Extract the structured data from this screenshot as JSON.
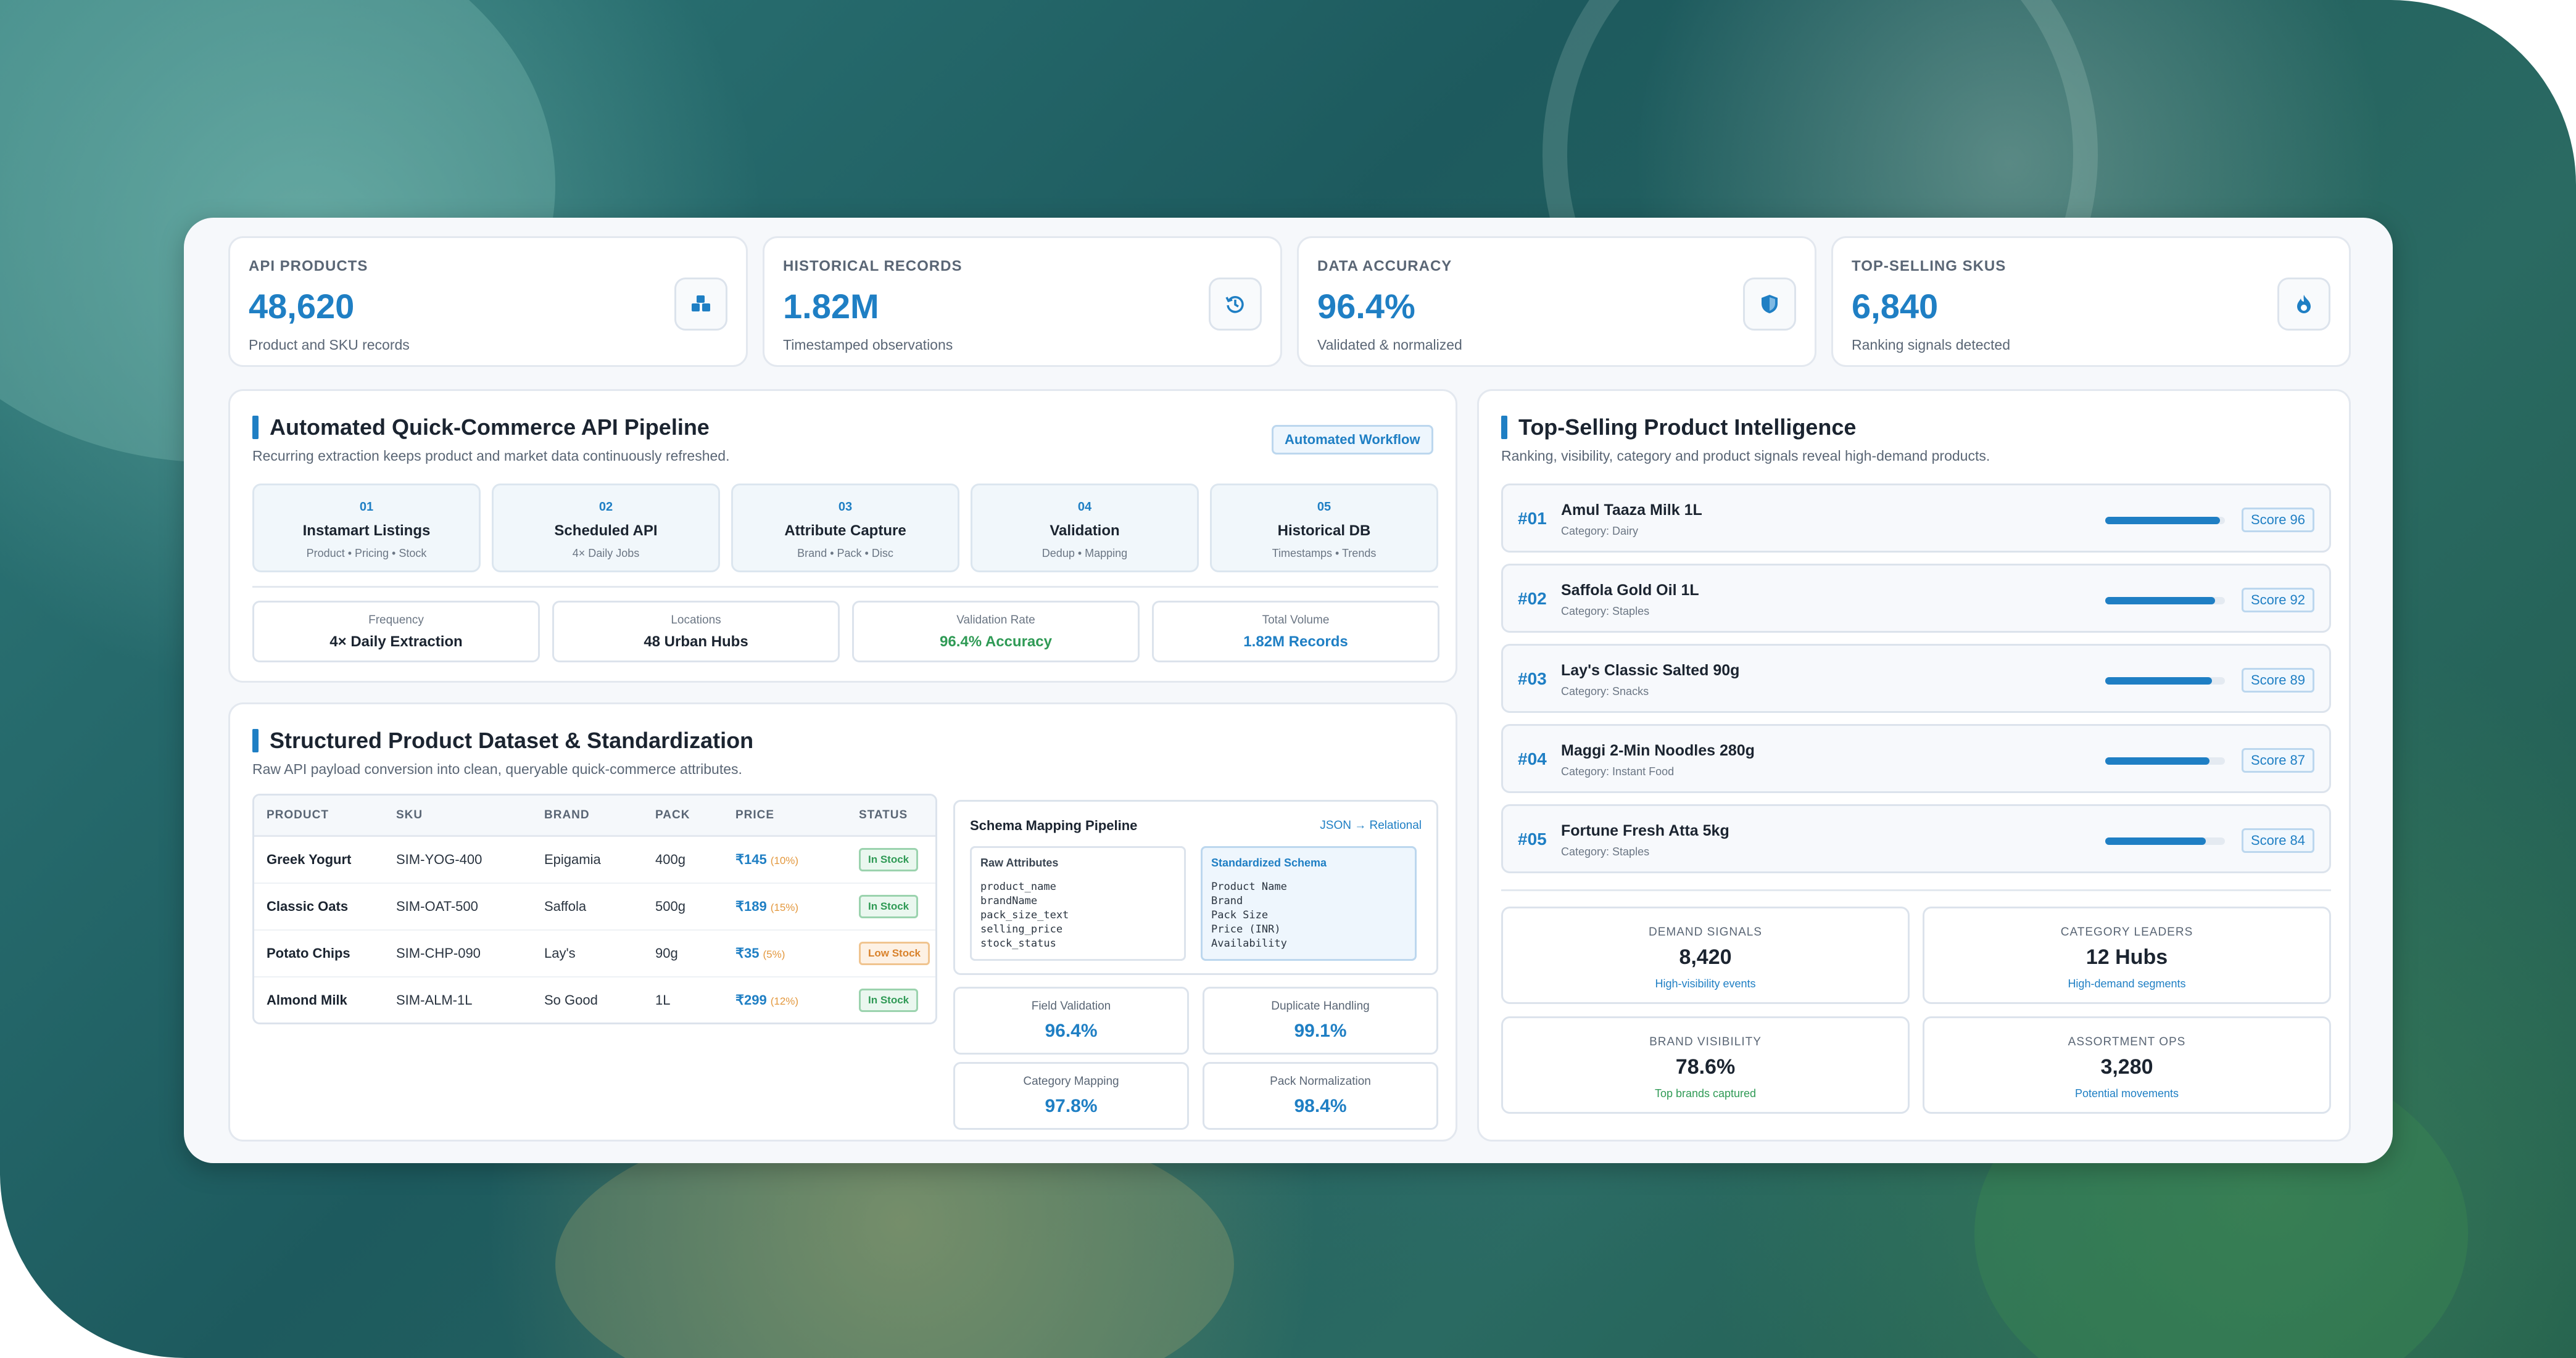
{
  "stats": [
    {
      "label": "API PRODUCTS",
      "value": "48,620",
      "sub": "Product and SKU records",
      "icon": "boxes-icon"
    },
    {
      "label": "HISTORICAL RECORDS",
      "value": "1.82M",
      "sub": "Timestamped observations",
      "icon": "history-icon"
    },
    {
      "label": "DATA ACCURACY",
      "value": "96.4%",
      "sub": "Validated & normalized",
      "icon": "shield-icon"
    },
    {
      "label": "TOP-SELLING SKUS",
      "value": "6,840",
      "sub": "Ranking signals detected",
      "icon": "fire-icon"
    }
  ],
  "pipeline": {
    "title": "Automated Quick-Commerce API Pipeline",
    "subtitle": "Recurring extraction keeps product and market data continuously refreshed.",
    "tag": "Automated Workflow",
    "steps": [
      {
        "num": "01",
        "title": "Instamart Listings",
        "sub": "Product • Pricing • Stock"
      },
      {
        "num": "02",
        "title": "Scheduled API",
        "sub": "4× Daily Jobs"
      },
      {
        "num": "03",
        "title": "Attribute Capture",
        "sub": "Brand • Pack • Disc"
      },
      {
        "num": "04",
        "title": "Validation",
        "sub": "Dedup • Mapping"
      },
      {
        "num": "05",
        "title": "Historical DB",
        "sub": "Timestamps • Trends"
      }
    ],
    "metrics": [
      {
        "label": "Frequency",
        "value": "4× Daily Extraction"
      },
      {
        "label": "Locations",
        "value": "48 Urban Hubs"
      },
      {
        "label": "Validation Rate",
        "value": "96.4% Accuracy"
      },
      {
        "label": "Total Volume",
        "value": "1.82M Records"
      }
    ],
    "colors": {
      "green": "#2f9a55",
      "blue": "#1f7fc4"
    }
  },
  "dataset": {
    "title": "Structured Product Dataset & Standardization",
    "subtitle": "Raw API payload conversion into clean, queryable quick-commerce attributes.",
    "columns": [
      "PRODUCT",
      "SKU",
      "BRAND",
      "PACK",
      "PRICE",
      "STATUS"
    ],
    "rows": [
      {
        "product": "Greek Yogurt",
        "sku": "SIM-YOG-400",
        "brand": "Epigamia",
        "pack": "400g",
        "price": "₹145",
        "disc": "(10%)",
        "status": "In Stock"
      },
      {
        "product": "Classic Oats",
        "sku": "SIM-OAT-500",
        "brand": "Saffola",
        "pack": "500g",
        "price": "₹189",
        "disc": "(15%)",
        "status": "In Stock"
      },
      {
        "product": "Potato Chips",
        "sku": "SIM-CHP-090",
        "brand": "Lay's",
        "pack": "90g",
        "price": "₹35",
        "disc": "(5%)",
        "status": "Low Stock"
      },
      {
        "product": "Almond Milk",
        "sku": "SIM-ALM-1L",
        "brand": "So Good",
        "pack": "1L",
        "price": "₹299",
        "disc": "(12%)",
        "status": "In Stock"
      }
    ],
    "schema": {
      "title": "Schema Mapping Pipeline",
      "link": "JSON → Relational",
      "raw_title": "Raw Attributes",
      "raw_fields": [
        "product_name",
        "brandName",
        "pack_size_text",
        "selling_price",
        "stock_status"
      ],
      "std_title": "Standardized Schema",
      "std_fields": [
        "Product Name",
        "Brand",
        "Pack Size",
        "Price (INR)",
        "Availability"
      ]
    },
    "quality": [
      {
        "label": "Field Validation",
        "value": "96.4%"
      },
      {
        "label": "Duplicate Handling",
        "value": "99.1%"
      },
      {
        "label": "Category Mapping",
        "value": "97.8%"
      },
      {
        "label": "Pack Normalization",
        "value": "98.4%"
      }
    ]
  },
  "intel": {
    "title": "Top-Selling Product Intelligence",
    "subtitle": "Ranking, visibility, category and product signals reveal high-demand products.",
    "ranks": [
      {
        "rank": "#01",
        "name": "Amul Taaza Milk 1L",
        "category": "Category: Dairy",
        "score_label": "Score 96",
        "score": 96
      },
      {
        "rank": "#02",
        "name": "Saffola Gold Oil 1L",
        "category": "Category: Staples",
        "score_label": "Score 92",
        "score": 92
      },
      {
        "rank": "#03",
        "name": "Lay's Classic Salted 90g",
        "category": "Category: Snacks",
        "score_label": "Score 89",
        "score": 89
      },
      {
        "rank": "#04",
        "name": "Maggi 2-Min Noodles 280g",
        "category": "Category: Instant Food",
        "score_label": "Score 87",
        "score": 87
      },
      {
        "rank": "#05",
        "name": "Fortune Fresh Atta 5kg",
        "category": "Category: Staples",
        "score_label": "Score 84",
        "score": 84
      }
    ],
    "kpis": [
      {
        "label": "DEMAND SIGNALS",
        "value": "8,420",
        "sub": "High-visibility events",
        "color": "#1f7fc4"
      },
      {
        "label": "CATEGORY LEADERS",
        "value": "12 Hubs",
        "sub": "High-demand segments",
        "color": "#1f7fc4"
      },
      {
        "label": "BRAND VISIBILITY",
        "value": "78.6%",
        "sub": "Top brands captured",
        "color": "#2f9a55"
      },
      {
        "label": "ASSORTMENT OPS",
        "value": "3,280",
        "sub": "Potential movements",
        "color": "#1f7fc4"
      }
    ]
  }
}
